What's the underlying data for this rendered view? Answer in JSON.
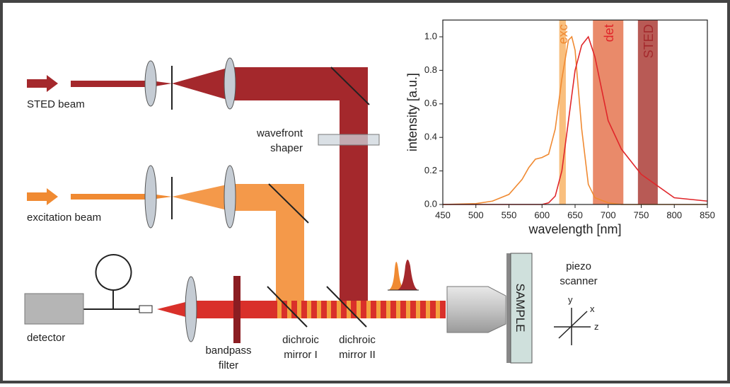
{
  "labels": {
    "sted_beam": "STED beam",
    "excitation_beam": "excitation beam",
    "detector": "detector",
    "bandpass_filter": [
      "bandpass",
      "filter"
    ],
    "dichroic_mirror_1": [
      "dichroic",
      "mirror I"
    ],
    "dichroic_mirror_2": [
      "dichroic",
      "mirror II"
    ],
    "wavefront_shaper": [
      "wavefront",
      "shaper"
    ],
    "sample": "SAMPLE",
    "piezo_scanner": [
      "piezo",
      "scanner"
    ],
    "axes": {
      "x": "x",
      "y": "y",
      "z": "z"
    }
  },
  "chart_data": {
    "type": "line",
    "xlabel": "wavelength [nm]",
    "ylabel": "intensity [a.u.]",
    "x": [
      450,
      500,
      525,
      550,
      570,
      580,
      590,
      600,
      610,
      620,
      630,
      640,
      645,
      650,
      660,
      670,
      680,
      700,
      720,
      750,
      800,
      850
    ],
    "series": [
      {
        "color": "#f08a32",
        "values": [
          0,
          0.005,
          0.02,
          0.06,
          0.15,
          0.22,
          0.27,
          0.28,
          0.3,
          0.45,
          0.75,
          0.98,
          1.0,
          0.92,
          0.45,
          0.12,
          0.04,
          0.01,
          0,
          0,
          0,
          0
        ]
      },
      {
        "color": "#e0262a",
        "values": [
          0,
          0,
          0,
          0,
          0,
          0,
          0,
          0,
          0.01,
          0.05,
          0.2,
          0.5,
          0.65,
          0.8,
          0.95,
          1.0,
          0.88,
          0.5,
          0.33,
          0.18,
          0.04,
          0.02
        ]
      }
    ],
    "bands": [
      {
        "label": "exc",
        "range": [
          626,
          636
        ],
        "color": "#f9bf7e",
        "label_color": "#f08a32"
      },
      {
        "label": "det",
        "range": [
          677,
          723
        ],
        "color": "#e98a6a",
        "label_color": "#e0262a"
      },
      {
        "label": "STED",
        "range": [
          745,
          775
        ],
        "color": "#b85a55",
        "label_color": "#a4282c"
      }
    ],
    "xlim": [
      450,
      850
    ],
    "xticks": [
      450,
      500,
      550,
      600,
      650,
      700,
      750,
      800,
      850
    ],
    "ylim": [
      0,
      1.1
    ],
    "yticks": [
      {
        "value": 0,
        "label": "0.0"
      },
      0.2,
      0.4,
      0.6,
      0.8,
      {
        "value": 1,
        "label": "1.0"
      }
    ]
  }
}
